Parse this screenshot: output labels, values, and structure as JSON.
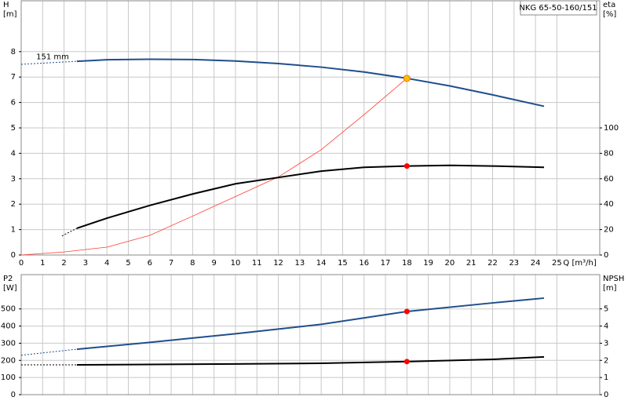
{
  "chart_data": [
    {
      "type": "line",
      "title": "NKG 65-50-160/151",
      "ylabel": [
        "H",
        "[m]"
      ],
      "y2label": [
        "eta",
        "[%]"
      ],
      "xlabel": "Q [m³/h]",
      "xlim": [
        0,
        27
      ],
      "xticks": [
        0,
        1,
        2,
        3,
        4,
        5,
        6,
        7,
        8,
        9,
        10,
        11,
        12,
        13,
        14,
        15,
        16,
        17,
        18,
        19,
        20,
        21,
        22,
        23,
        24,
        25
      ],
      "ylim": [
        0,
        10
      ],
      "yticks": [
        0,
        1,
        2,
        3,
        4,
        5,
        6,
        7,
        8
      ],
      "y2lim": [
        0,
        200
      ],
      "y2ticks": [
        0,
        20,
        40,
        60,
        80,
        100
      ],
      "grid": true,
      "show_xtick_labels": true,
      "annotations": [
        {
          "text": "151 mm",
          "x": 0.7,
          "y": 7.8
        }
      ],
      "series": [
        {
          "x": [
            0,
            2.6
          ],
          "values": [
            7.5,
            7.62
          ],
          "color": "#1f4e8c",
          "style": "dashed",
          "line_width": 1,
          "axis": "y"
        },
        {
          "x": [
            2.6,
            4,
            6,
            8,
            10,
            12,
            14,
            16,
            18,
            20,
            22,
            24.4
          ],
          "values": [
            7.62,
            7.68,
            7.7,
            7.69,
            7.63,
            7.53,
            7.39,
            7.2,
            6.95,
            6.65,
            6.3,
            5.85
          ],
          "color": "#1f4e8c",
          "style": "solid",
          "line_width": 2,
          "axis": "y"
        },
        {
          "x": [
            0,
            2,
            4,
            6,
            8,
            10,
            12,
            14,
            16,
            18
          ],
          "values": [
            0,
            0.12,
            0.31,
            0.77,
            1.53,
            2.3,
            3.07,
            4.14,
            5.52,
            6.95
          ],
          "color": "#ff3b2f",
          "style": "solid",
          "line_width": 0.8,
          "axis": "y"
        },
        {
          "x": [
            1.9,
            2.6
          ],
          "values": [
            15,
            21
          ],
          "color": "#000000",
          "style": "dashed",
          "line_width": 1,
          "axis": "y2"
        },
        {
          "x": [
            2.6,
            4,
            6,
            8,
            10,
            12,
            14,
            16,
            18,
            20,
            22,
            24.4
          ],
          "values": [
            21,
            29,
            39,
            48,
            56,
            61,
            66,
            69,
            70,
            70.5,
            70,
            69
          ],
          "color": "#000000",
          "style": "solid",
          "line_width": 2,
          "axis": "y2"
        }
      ],
      "points": [
        {
          "x": 18,
          "y": 6.95,
          "axis": "y",
          "color": "#ffc000"
        },
        {
          "x": 18,
          "y": 70,
          "axis": "y2",
          "color": "#ff0000"
        }
      ]
    },
    {
      "type": "line",
      "ylabel": [
        "P2",
        "[W]"
      ],
      "y2label": [
        "NPSH",
        "[m]"
      ],
      "xlim": [
        0,
        27
      ],
      "xticks": [
        0,
        1,
        2,
        3,
        4,
        5,
        6,
        7,
        8,
        9,
        10,
        11,
        12,
        13,
        14,
        15,
        16,
        17,
        18,
        19,
        20,
        21,
        22,
        23,
        24,
        25
      ],
      "ylim": [
        0,
        700
      ],
      "yticks": [
        0,
        100,
        200,
        300,
        400,
        500
      ],
      "y2lim": [
        0,
        7
      ],
      "y2ticks": [
        0,
        1,
        2,
        3,
        4,
        5
      ],
      "grid": true,
      "show_xtick_labels": false,
      "series": [
        {
          "x": [
            0,
            2.6
          ],
          "values": [
            230,
            265
          ],
          "color": "#1f4e8c",
          "style": "dashed",
          "line_width": 1,
          "axis": "y"
        },
        {
          "x": [
            2.6,
            6,
            10,
            14,
            18,
            22,
            24.4
          ],
          "values": [
            265,
            305,
            355,
            410,
            485,
            535,
            563
          ],
          "color": "#1f4e8c",
          "style": "solid",
          "line_width": 2,
          "axis": "y"
        },
        {
          "x": [
            0,
            2.6
          ],
          "values": [
            1.74,
            1.74
          ],
          "color": "#000000",
          "style": "dashed",
          "line_width": 1,
          "axis": "y2"
        },
        {
          "x": [
            2.6,
            6,
            10,
            14,
            18,
            22,
            24.4
          ],
          "values": [
            1.74,
            1.76,
            1.79,
            1.83,
            1.93,
            2.06,
            2.2
          ],
          "color": "#000000",
          "style": "solid",
          "line_width": 2,
          "axis": "y2"
        }
      ],
      "points": [
        {
          "x": 18,
          "y": 485,
          "axis": "y",
          "color": "#ff0000"
        },
        {
          "x": 18,
          "y": 1.93,
          "axis": "y2",
          "color": "#ff0000"
        }
      ]
    }
  ]
}
